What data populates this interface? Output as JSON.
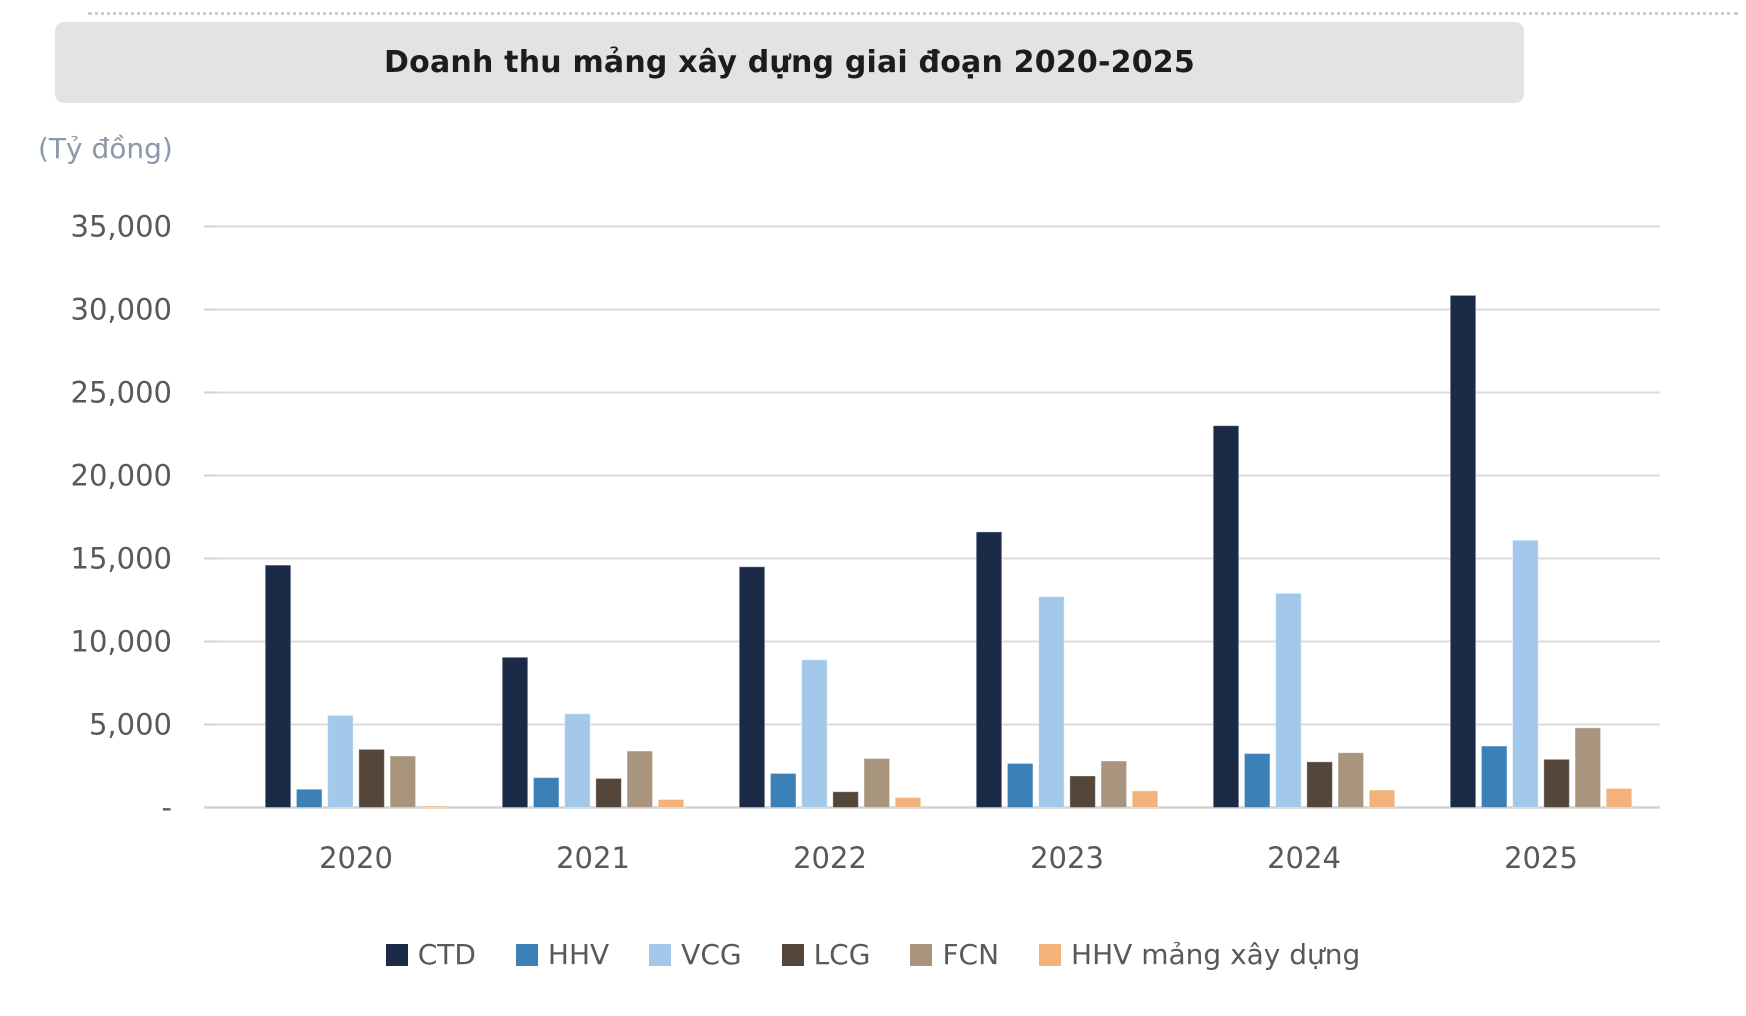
{
  "page": {
    "title_banner": "Doanh thu mảng xây dựng giai đoạn 2020-2025",
    "unit_label": "(Tỷ đồng)"
  },
  "chart_data": {
    "type": "bar",
    "title": "Doanh thu mảng xây dựng giai đoạn 2020-2025",
    "unit": "Tỷ đồng",
    "categories": [
      "2020",
      "2021",
      "2022",
      "2023",
      "2024",
      "2025"
    ],
    "series": [
      {
        "name": "CTD",
        "color": "#1A2A47",
        "values": [
          14600,
          9050,
          14500,
          16600,
          23000,
          30850
        ]
      },
      {
        "name": "HHV",
        "color": "#3C80B8",
        "values": [
          1100,
          1800,
          2050,
          2650,
          3250,
          3700
        ]
      },
      {
        "name": "VCG",
        "color": "#A3C9EA",
        "values": [
          5550,
          5650,
          8900,
          12700,
          12900,
          16100
        ]
      },
      {
        "name": "LCG",
        "color": "#55463A",
        "values": [
          3500,
          1750,
          950,
          1900,
          2750,
          2900
        ]
      },
      {
        "name": "FCN",
        "color": "#A9947D",
        "values": [
          3100,
          3400,
          2950,
          2800,
          3300,
          4800
        ]
      },
      {
        "name": "HHV mảng xây dựng",
        "color": "#F2B279",
        "values": [
          90,
          480,
          600,
          1000,
          1050,
          1150
        ]
      }
    ],
    "y_axis": {
      "max": 35000,
      "step": 5000,
      "tick_labels": [
        "35,000",
        "30,000",
        "25,000",
        "20,000",
        "15,000",
        "10,000",
        "5,000"
      ],
      "zero_label": "-"
    },
    "grid": true,
    "legend_position": "bottom",
    "colors": {
      "axis_text": "#595959",
      "gridline": "#dbdbdb",
      "zero_line": "#d2d2d2",
      "banner_bg": "#e3e3e3"
    }
  }
}
